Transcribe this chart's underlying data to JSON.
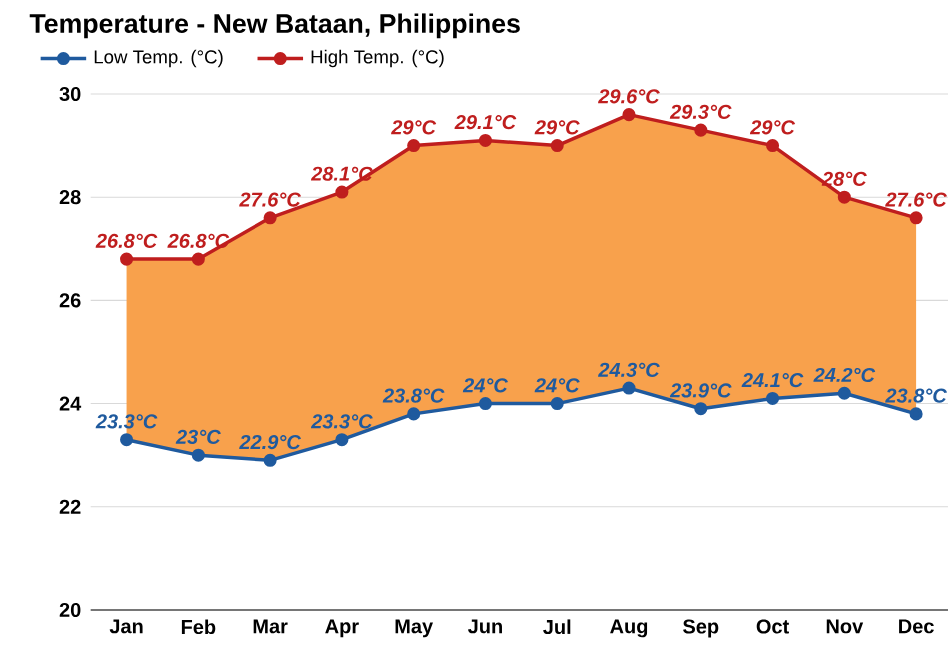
{
  "chart_data": {
    "type": "line",
    "title": "Temperature - New Bataan, Philippines",
    "categories": [
      "Jan",
      "Feb",
      "Mar",
      "Apr",
      "May",
      "Jun",
      "Jul",
      "Aug",
      "Sep",
      "Oct",
      "Nov",
      "Dec"
    ],
    "series": [
      {
        "name": "Low Temp. (°C)",
        "color": "#1f5a9e",
        "values": [
          23.3,
          23,
          22.9,
          23.3,
          23.8,
          24,
          24,
          24.3,
          23.9,
          24.1,
          24.2,
          23.8
        ],
        "value_labels": [
          "23.3°C",
          "23°C",
          "22.9°C",
          "23.3°C",
          "23.8°C",
          "24°C",
          "24°C",
          "24.3°C",
          "23.9°C",
          "24.1°C",
          "24.2°C",
          "23.8°C"
        ]
      },
      {
        "name": "High Temp. (°C)",
        "color": "#bf1e1e",
        "values": [
          26.8,
          26.8,
          27.6,
          28.1,
          29,
          29.1,
          29,
          29.6,
          29.3,
          29,
          28,
          27.6
        ],
        "value_labels": [
          "26.8°C",
          "26.8°C",
          "27.6°C",
          "28.1°C",
          "29°C",
          "29.1°C",
          "29°C",
          "29.6°C",
          "29.3°C",
          "29°C",
          "28°C",
          "27.6°C"
        ],
        "lower": [
          23.3,
          23,
          22.9,
          23.3,
          23.8,
          24,
          24,
          24.3,
          23.9,
          24.1,
          24.2,
          23.8
        ],
        "upper": [
          26.8,
          26.8,
          27.6,
          28.1,
          29,
          29.1,
          29,
          29.6,
          29.3,
          29,
          28,
          27.6
        ]
      }
    ],
    "ylim": [
      20,
      30
    ],
    "yticks": [
      20,
      22,
      24,
      26,
      28,
      30
    ],
    "grid": "y",
    "legend": "top left",
    "marker": "circle",
    "line_style": "solid"
  }
}
